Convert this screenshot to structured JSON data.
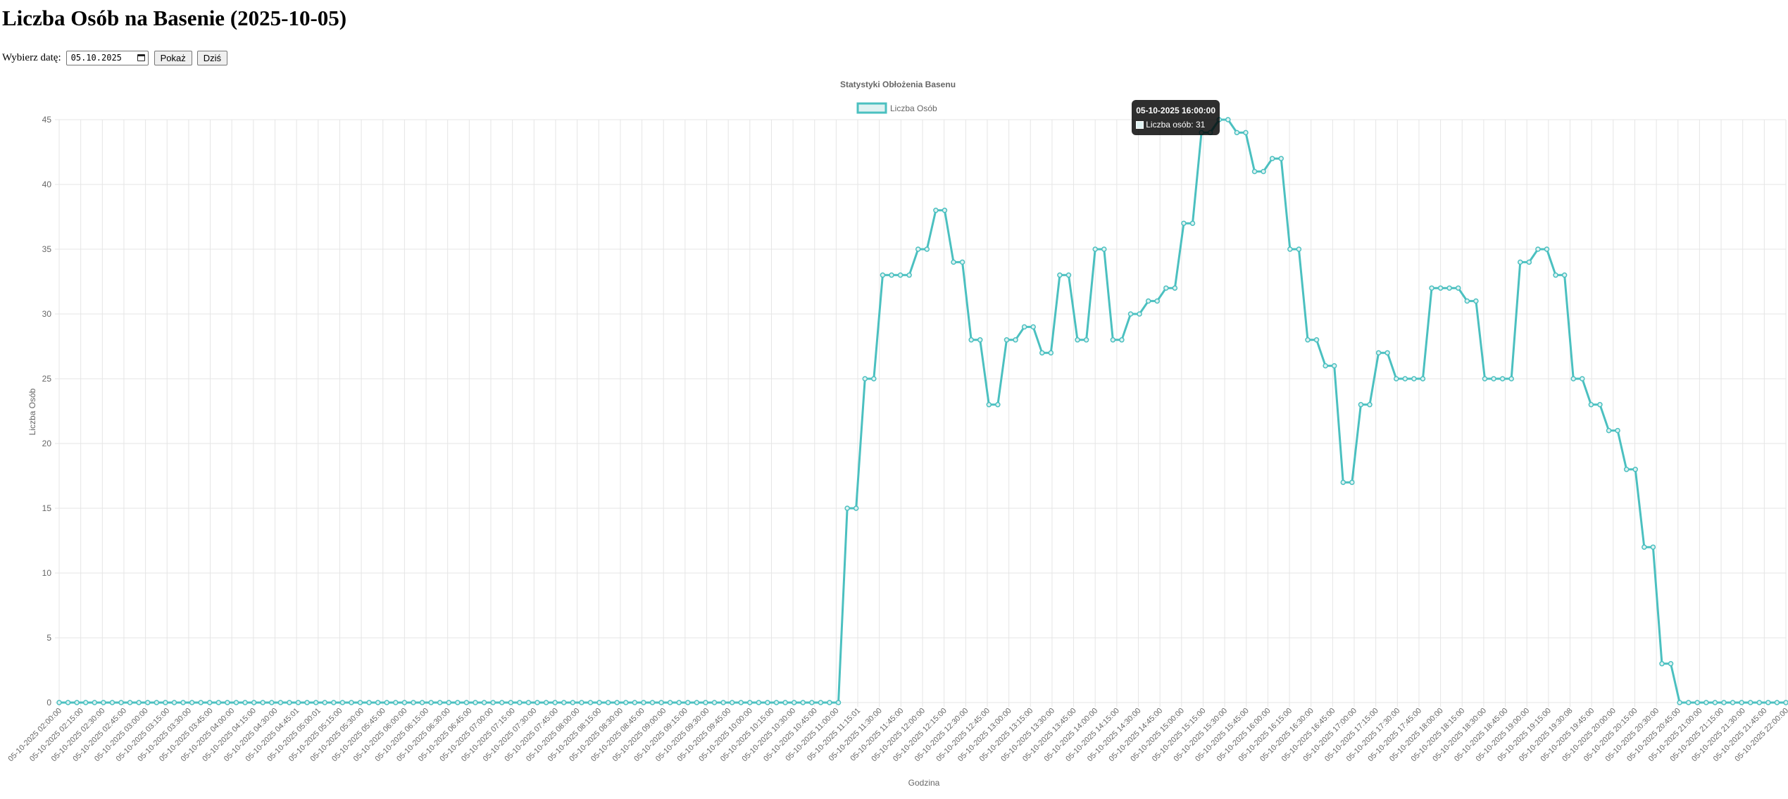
{
  "page": {
    "title": "Liczba Osób na Basenie (2025-10-05)",
    "date_label": "Wybierz datę:",
    "date_value": "05.10.2025",
    "show_button": "Pokaż",
    "today_button": "Dziś"
  },
  "colors": {
    "line": "#4bc0c0",
    "fill": "#dff2f2",
    "grid": "#e5e5e5",
    "text": "#666666"
  },
  "tooltip": {
    "title": "05-10-2025 16:00:00",
    "label": "Liczba osób: 31",
    "index": 131
  },
  "chart_data": {
    "type": "line",
    "title": "Statystyki Obłożenia Basenu",
    "xlabel": "Godzina",
    "ylabel": "Liczba Osób",
    "ylim": [
      0,
      45
    ],
    "yticks": [
      0,
      5,
      10,
      15,
      20,
      25,
      30,
      35,
      40,
      45
    ],
    "grid": true,
    "legend": "top-center",
    "x_tick_labels": [
      "05-10-2025 02:00:00",
      "05-10-2025 02:15:00",
      "05-10-2025 02:30:00",
      "05-10-2025 02:45:00",
      "05-10-2025 03:00:00",
      "05-10-2025 03:15:00",
      "05-10-2025 03:30:00",
      "05-10-2025 03:45:00",
      "05-10-2025 04:00:00",
      "05-10-2025 04:15:00",
      "05-10-2025 04:30:00",
      "05-10-2025 04:45:01",
      "05-10-2025 05:00:01",
      "05-10-2025 05:15:00",
      "05-10-2025 05:30:00",
      "05-10-2025 05:45:00",
      "05-10-2025 06:00:00",
      "05-10-2025 06:15:00",
      "05-10-2025 06:30:00",
      "05-10-2025 06:45:00",
      "05-10-2025 07:00:00",
      "05-10-2025 07:15:00",
      "05-10-2025 07:30:00",
      "05-10-2025 07:45:00",
      "05-10-2025 08:00:00",
      "05-10-2025 08:15:00",
      "05-10-2025 08:30:00",
      "05-10-2025 08:45:00",
      "05-10-2025 09:00:00",
      "05-10-2025 09:15:00",
      "05-10-2025 09:30:00",
      "05-10-2025 09:45:00",
      "05-10-2025 10:00:00",
      "05-10-2025 10:15:00",
      "05-10-2025 10:30:00",
      "05-10-2025 10:45:00",
      "05-10-2025 11:00:00",
      "05-10-2025 11:15:01",
      "05-10-2025 11:30:00",
      "05-10-2025 11:45:00",
      "05-10-2025 12:00:00",
      "05-10-2025 12:15:00",
      "05-10-2025 12:30:00",
      "05-10-2025 12:45:00",
      "05-10-2025 13:00:00",
      "05-10-2025 13:15:00",
      "05-10-2025 13:30:00",
      "05-10-2025 13:45:00",
      "05-10-2025 14:00:00",
      "05-10-2025 14:15:00",
      "05-10-2025 14:30:00",
      "05-10-2025 14:45:00",
      "05-10-2025 15:00:00",
      "05-10-2025 15:15:00",
      "05-10-2025 15:30:00",
      "05-10-2025 15:45:00",
      "05-10-2025 16:00:00",
      "05-10-2025 16:15:00",
      "05-10-2025 16:30:00",
      "05-10-2025 16:45:00",
      "05-10-2025 17:00:00",
      "05-10-2025 17:15:00",
      "05-10-2025 17:30:00",
      "05-10-2025 17:45:00",
      "05-10-2025 18:00:00",
      "05-10-2025 18:15:00",
      "05-10-2025 18:30:00",
      "05-10-2025 18:45:00",
      "05-10-2025 19:00:00",
      "05-10-2025 19:15:00",
      "05-10-2025 19:30:08",
      "05-10-2025 19:45:00",
      "05-10-2025 20:00:00",
      "05-10-2025 20:15:00",
      "05-10-2025 20:30:00",
      "05-10-2025 20:45:00",
      "05-10-2025 21:00:00",
      "05-10-2025 21:15:00",
      "05-10-2025 21:30:00",
      "05-10-2025 21:45:00",
      "05-10-2025 22:00:00"
    ],
    "series": [
      {
        "name": "Liczba Osób",
        "values": [
          0,
          0,
          0,
          0,
          0,
          0,
          0,
          0,
          0,
          0,
          0,
          0,
          0,
          0,
          0,
          0,
          0,
          0,
          0,
          0,
          0,
          0,
          0,
          0,
          0,
          0,
          0,
          0,
          0,
          0,
          0,
          0,
          0,
          0,
          0,
          0,
          0,
          0,
          0,
          0,
          0,
          0,
          0,
          0,
          0,
          0,
          0,
          0,
          0,
          0,
          0,
          0,
          0,
          0,
          0,
          0,
          0,
          0,
          0,
          0,
          0,
          0,
          0,
          0,
          0,
          0,
          0,
          0,
          0,
          0,
          0,
          0,
          0,
          0,
          0,
          0,
          0,
          0,
          0,
          0,
          0,
          0,
          0,
          0,
          0,
          0,
          0,
          0,
          0,
          15,
          15,
          25,
          25,
          33,
          33,
          33,
          33,
          35,
          35,
          38,
          38,
          34,
          34,
          28,
          28,
          23,
          23,
          28,
          28,
          29,
          29,
          27,
          27,
          33,
          33,
          28,
          28,
          35,
          35,
          28,
          28,
          30,
          30,
          31,
          31,
          32,
          32,
          37,
          37,
          44,
          44,
          45,
          45,
          44,
          44,
          41,
          41,
          42,
          42,
          35,
          35,
          28,
          28,
          26,
          26,
          17,
          17,
          23,
          23,
          27,
          27,
          25,
          25,
          25,
          25,
          32,
          32,
          32,
          32,
          31,
          31,
          25,
          25,
          25,
          25,
          34,
          34,
          35,
          35,
          33,
          33,
          25,
          25,
          23,
          23,
          21,
          21,
          18,
          18,
          12,
          12,
          3,
          3,
          0,
          0,
          0,
          0,
          0,
          0,
          0,
          0,
          0,
          0,
          0,
          0,
          0
        ]
      }
    ]
  }
}
